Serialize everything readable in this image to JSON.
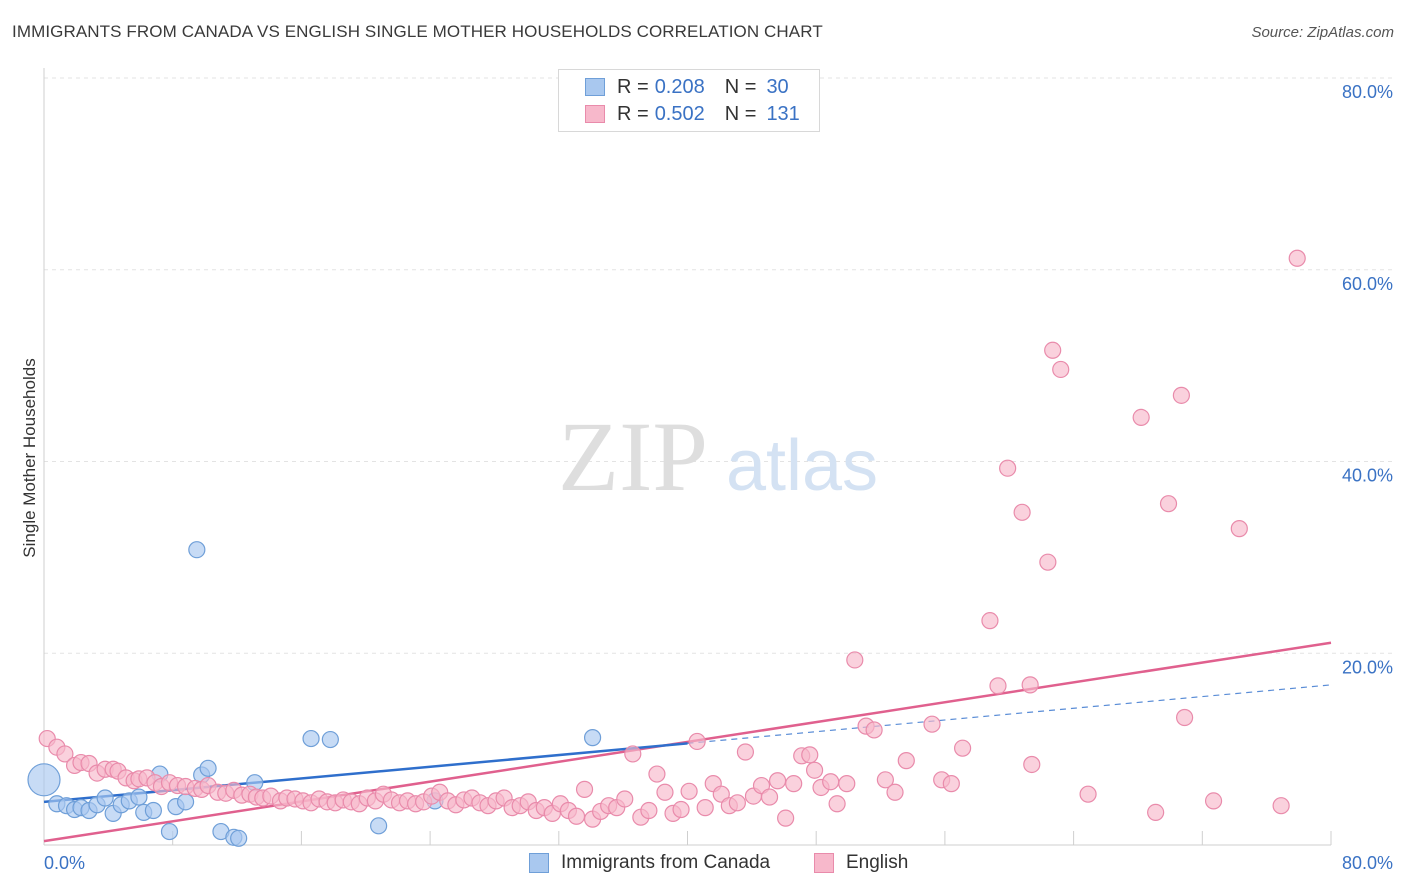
{
  "header": {
    "title": "IMMIGRANTS FROM CANADA VS ENGLISH SINGLE MOTHER HOUSEHOLDS CORRELATION CHART",
    "source": "Source: ZipAtlas.com"
  },
  "watermark": {
    "zip": "ZIP",
    "atlas": "atlas"
  },
  "colors": {
    "blue_fill": "#a9c8ef",
    "blue_stroke": "#6f9fd8",
    "blue_line": "#2f6fcc",
    "pink_fill": "#f7b8cb",
    "pink_stroke": "#e98bab",
    "pink_line": "#e0608e",
    "tick_label": "#3a72c4",
    "grid": "#e3e3e3"
  },
  "legend": {
    "rows": [
      {
        "r_label": "R =",
        "r_value": "0.208",
        "n_label": "N =",
        "n_value": "30"
      },
      {
        "r_label": "R =",
        "r_value": "0.502",
        "n_label": "N =",
        "n_value": "131"
      }
    ]
  },
  "bottom_legend": {
    "series1": "Immigrants from Canada",
    "series2": "English"
  },
  "chart_data": {
    "type": "scatter",
    "title": "IMMIGRANTS FROM CANADA VS ENGLISH SINGLE MOTHER HOUSEHOLDS CORRELATION CHART",
    "xlabel": "",
    "ylabel": "Single Mother Households",
    "xlim": [
      0,
      80
    ],
    "ylim": [
      0,
      80
    ],
    "x_tick_labels": [
      "0.0%",
      "80.0%"
    ],
    "y_tick_labels": [
      "20.0%",
      "40.0%",
      "60.0%",
      "80.0%"
    ],
    "y_ticks": [
      20,
      40,
      60,
      80
    ],
    "grid": true,
    "legend_position": "top-center",
    "series": [
      {
        "name": "Immigrants from Canada",
        "color": "#a9c8ef",
        "r": 0.208,
        "n": 30,
        "points": [
          [
            0.0,
            6.8
          ],
          [
            0.8,
            4.3
          ],
          [
            1.4,
            4.1
          ],
          [
            1.9,
            3.7
          ],
          [
            2.3,
            3.9
          ],
          [
            2.8,
            3.6
          ],
          [
            3.3,
            4.2
          ],
          [
            3.8,
            4.9
          ],
          [
            4.3,
            3.3
          ],
          [
            4.8,
            4.2
          ],
          [
            5.3,
            4.6
          ],
          [
            5.9,
            5.0
          ],
          [
            6.2,
            3.4
          ],
          [
            6.8,
            3.6
          ],
          [
            7.2,
            7.4
          ],
          [
            7.8,
            1.4
          ],
          [
            8.2,
            4.0
          ],
          [
            8.8,
            4.5
          ],
          [
            9.5,
            30.8
          ],
          [
            9.8,
            7.3
          ],
          [
            10.2,
            8.0
          ],
          [
            11.0,
            1.4
          ],
          [
            11.8,
            0.8
          ],
          [
            12.1,
            0.7
          ],
          [
            13.1,
            6.5
          ],
          [
            16.6,
            11.1
          ],
          [
            17.8,
            11.0
          ],
          [
            20.8,
            2.0
          ],
          [
            24.3,
            4.6
          ],
          [
            34.1,
            11.2
          ]
        ],
        "trend": {
          "x": [
            0,
            40
          ],
          "y": [
            4.5,
            10.6
          ]
        },
        "trend_extension": {
          "x": [
            40,
            80
          ],
          "y": [
            10.6,
            16.7
          ]
        }
      },
      {
        "name": "English",
        "color": "#f7b8cb",
        "r": 0.502,
        "n": 131,
        "points": [
          [
            0.2,
            11.1
          ],
          [
            0.8,
            10.2
          ],
          [
            1.3,
            9.5
          ],
          [
            1.9,
            8.3
          ],
          [
            2.3,
            8.6
          ],
          [
            2.8,
            8.5
          ],
          [
            3.3,
            7.5
          ],
          [
            3.8,
            7.9
          ],
          [
            4.3,
            7.9
          ],
          [
            4.6,
            7.7
          ],
          [
            5.1,
            7.0
          ],
          [
            5.6,
            6.7
          ],
          [
            5.9,
            6.9
          ],
          [
            6.4,
            7.0
          ],
          [
            6.9,
            6.5
          ],
          [
            7.3,
            6.1
          ],
          [
            7.8,
            6.5
          ],
          [
            8.3,
            6.2
          ],
          [
            8.8,
            6.1
          ],
          [
            9.4,
            5.9
          ],
          [
            9.8,
            5.8
          ],
          [
            10.2,
            6.2
          ],
          [
            10.8,
            5.5
          ],
          [
            11.3,
            5.4
          ],
          [
            11.8,
            5.7
          ],
          [
            12.3,
            5.2
          ],
          [
            12.8,
            5.3
          ],
          [
            13.2,
            5.0
          ],
          [
            13.6,
            4.9
          ],
          [
            14.1,
            5.1
          ],
          [
            14.7,
            4.6
          ],
          [
            15.1,
            4.9
          ],
          [
            15.6,
            4.8
          ],
          [
            16.1,
            4.6
          ],
          [
            16.6,
            4.4
          ],
          [
            17.1,
            4.8
          ],
          [
            17.6,
            4.5
          ],
          [
            18.1,
            4.4
          ],
          [
            18.6,
            4.7
          ],
          [
            19.1,
            4.5
          ],
          [
            19.6,
            4.3
          ],
          [
            20.1,
            4.9
          ],
          [
            20.6,
            4.6
          ],
          [
            21.1,
            5.3
          ],
          [
            21.6,
            4.7
          ],
          [
            22.1,
            4.4
          ],
          [
            22.6,
            4.6
          ],
          [
            23.1,
            4.3
          ],
          [
            23.6,
            4.5
          ],
          [
            24.1,
            5.1
          ],
          [
            24.6,
            5.5
          ],
          [
            25.1,
            4.6
          ],
          [
            25.6,
            4.2
          ],
          [
            26.1,
            4.7
          ],
          [
            26.6,
            4.9
          ],
          [
            27.1,
            4.4
          ],
          [
            27.6,
            4.1
          ],
          [
            28.1,
            4.6
          ],
          [
            28.6,
            4.9
          ],
          [
            29.1,
            3.9
          ],
          [
            29.6,
            4.1
          ],
          [
            30.1,
            4.5
          ],
          [
            30.6,
            3.6
          ],
          [
            31.1,
            3.9
          ],
          [
            31.6,
            3.3
          ],
          [
            32.1,
            4.3
          ],
          [
            32.6,
            3.6
          ],
          [
            33.1,
            3.0
          ],
          [
            33.6,
            5.8
          ],
          [
            34.1,
            2.7
          ],
          [
            34.6,
            3.5
          ],
          [
            35.1,
            4.1
          ],
          [
            35.6,
            3.9
          ],
          [
            36.1,
            4.8
          ],
          [
            36.6,
            9.5
          ],
          [
            37.1,
            2.9
          ],
          [
            37.6,
            3.6
          ],
          [
            38.1,
            7.4
          ],
          [
            38.6,
            5.5
          ],
          [
            39.1,
            3.3
          ],
          [
            39.6,
            3.7
          ],
          [
            40.1,
            5.6
          ],
          [
            40.6,
            10.8
          ],
          [
            41.1,
            3.9
          ],
          [
            41.6,
            6.4
          ],
          [
            42.1,
            5.3
          ],
          [
            42.6,
            4.1
          ],
          [
            43.1,
            4.4
          ],
          [
            43.6,
            9.7
          ],
          [
            44.1,
            5.1
          ],
          [
            44.6,
            6.2
          ],
          [
            45.1,
            5.0
          ],
          [
            45.6,
            6.7
          ],
          [
            46.1,
            2.8
          ],
          [
            46.6,
            6.4
          ],
          [
            47.1,
            9.3
          ],
          [
            47.6,
            9.4
          ],
          [
            47.9,
            7.8
          ],
          [
            48.3,
            6.0
          ],
          [
            48.9,
            6.6
          ],
          [
            49.3,
            4.3
          ],
          [
            49.9,
            6.4
          ],
          [
            50.4,
            19.3
          ],
          [
            51.1,
            12.4
          ],
          [
            51.6,
            12.0
          ],
          [
            52.3,
            6.8
          ],
          [
            52.9,
            5.5
          ],
          [
            53.6,
            8.8
          ],
          [
            55.2,
            12.6
          ],
          [
            55.8,
            6.8
          ],
          [
            56.4,
            6.4
          ],
          [
            57.1,
            10.1
          ],
          [
            58.8,
            23.4
          ],
          [
            59.3,
            16.6
          ],
          [
            59.9,
            39.3
          ],
          [
            60.8,
            34.7
          ],
          [
            61.3,
            16.7
          ],
          [
            61.4,
            8.4
          ],
          [
            62.4,
            29.5
          ],
          [
            62.7,
            51.6
          ],
          [
            63.2,
            49.6
          ],
          [
            64.9,
            5.3
          ],
          [
            68.2,
            44.6
          ],
          [
            69.1,
            3.4
          ],
          [
            69.9,
            35.6
          ],
          [
            70.7,
            46.9
          ],
          [
            70.9,
            13.3
          ],
          [
            72.7,
            4.6
          ],
          [
            74.3,
            33.0
          ],
          [
            76.9,
            4.1
          ],
          [
            77.9,
            61.2
          ]
        ],
        "trend": {
          "x": [
            0,
            80
          ],
          "y": [
            0.4,
            21.1
          ]
        }
      }
    ]
  }
}
